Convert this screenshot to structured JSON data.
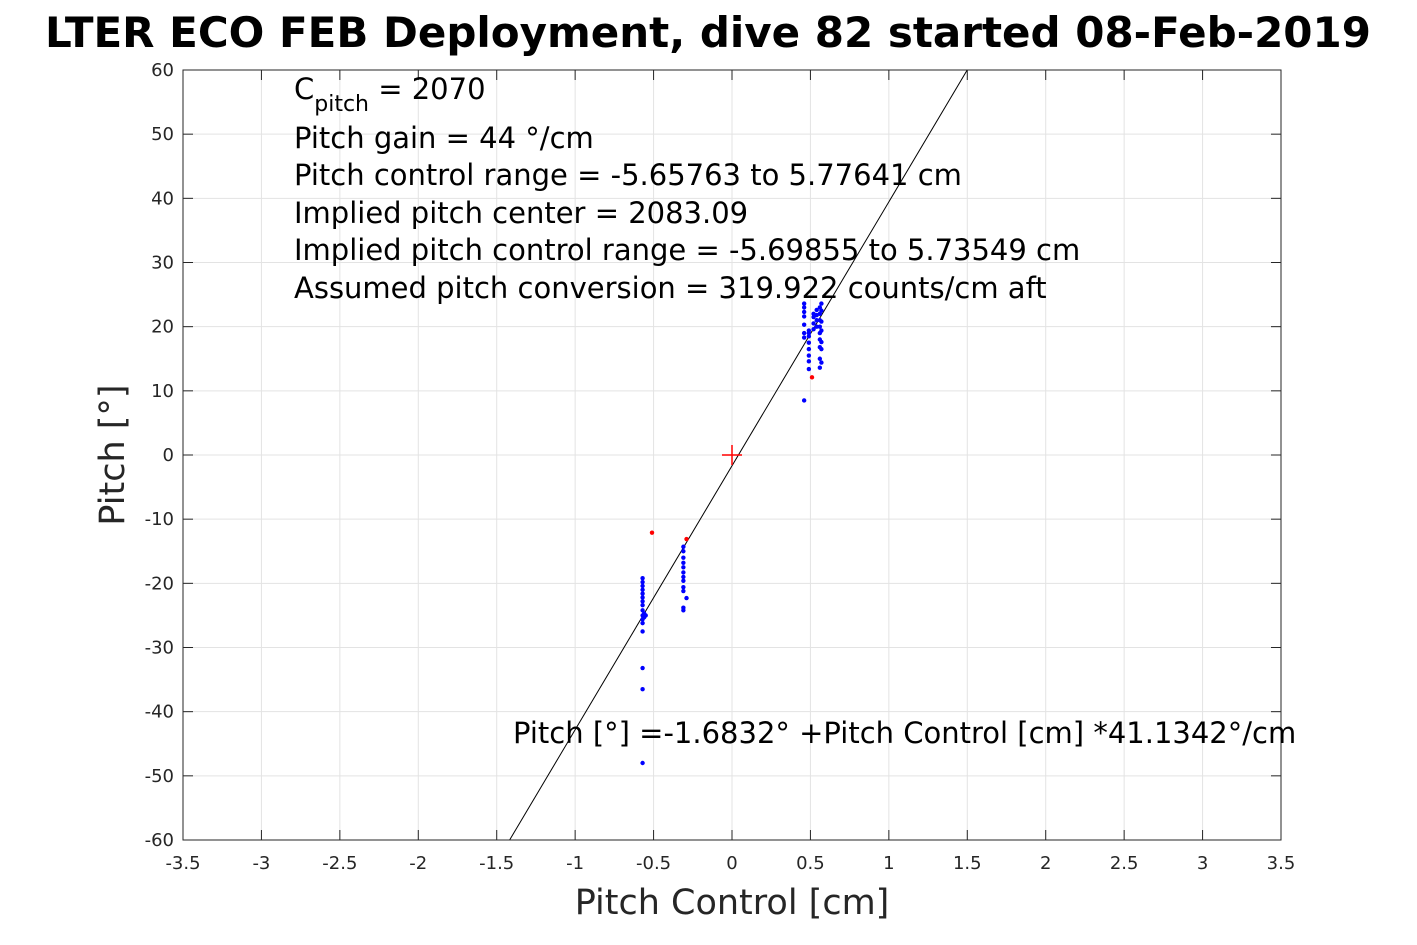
{
  "chart_data": {
    "type": "scatter",
    "title": "LTER ECO FEB Deployment, dive 82 started 08-Feb-2019",
    "xlabel": "Pitch Control [cm]",
    "ylabel": "Pitch [°]",
    "xlim": [
      -3.5,
      3.5
    ],
    "ylim": [
      -60,
      60
    ],
    "xticks": [
      -3.5,
      -3,
      -2.5,
      -2,
      -1.5,
      -1,
      -0.5,
      0,
      0.5,
      1,
      1.5,
      2,
      2.5,
      3,
      3.5
    ],
    "yticks": [
      -60,
      -50,
      -40,
      -30,
      -20,
      -10,
      0,
      10,
      20,
      30,
      40,
      50,
      60
    ],
    "xtick_labels": [
      "-3.5",
      "-3",
      "-2.5",
      "-2",
      "-1.5",
      "-1",
      "-0.5",
      "0",
      "0.5",
      "1",
      "1.5",
      "2",
      "2.5",
      "3",
      "3.5"
    ],
    "ytick_labels": [
      "-60",
      "-50",
      "-40",
      "-30",
      "-20",
      "-10",
      "0",
      "10",
      "20",
      "30",
      "40",
      "50",
      "60"
    ],
    "grid": true,
    "fit": {
      "intercept": -1.6832,
      "slope": 41.1342,
      "color": "#000000"
    },
    "center_marker": {
      "x": 0,
      "y": 0,
      "color": "#ff0000"
    },
    "series": [
      {
        "color": "#0000ff",
        "points": [
          [
            -0.57,
            -19.2
          ],
          [
            -0.57,
            -19.8
          ],
          [
            -0.57,
            -20.4
          ],
          [
            -0.57,
            -21.0
          ],
          [
            -0.57,
            -21.6
          ],
          [
            -0.57,
            -22.2
          ],
          [
            -0.57,
            -22.8
          ],
          [
            -0.57,
            -23.4
          ],
          [
            -0.57,
            -24.2
          ],
          [
            -0.57,
            -25.0
          ],
          [
            -0.57,
            -25.6
          ],
          [
            -0.57,
            -26.2
          ],
          [
            -0.57,
            -27.5
          ],
          [
            -0.56,
            -24.7
          ],
          [
            -0.56,
            -25.3
          ],
          [
            -0.55,
            -25.0
          ],
          [
            -0.57,
            -33.2
          ],
          [
            -0.57,
            -36.5
          ],
          [
            -0.57,
            -48.0
          ],
          [
            -0.31,
            -14.3
          ],
          [
            -0.31,
            -15.0
          ],
          [
            -0.31,
            -16.0
          ],
          [
            -0.31,
            -16.8
          ],
          [
            -0.31,
            -17.5
          ],
          [
            -0.31,
            -18.3
          ],
          [
            -0.31,
            -19.0
          ],
          [
            -0.31,
            -19.6
          ],
          [
            -0.31,
            -20.6
          ],
          [
            -0.31,
            -21.2
          ],
          [
            -0.31,
            -23.8
          ],
          [
            -0.31,
            -24.2
          ],
          [
            -0.29,
            -22.3
          ],
          [
            0.46,
            8.5
          ],
          [
            0.46,
            18.3
          ],
          [
            0.46,
            19.0
          ],
          [
            0.46,
            20.3
          ],
          [
            0.46,
            21.6
          ],
          [
            0.46,
            22.3
          ],
          [
            0.46,
            23.0
          ],
          [
            0.46,
            23.6
          ],
          [
            0.49,
            13.4
          ],
          [
            0.49,
            14.6
          ],
          [
            0.49,
            15.5
          ],
          [
            0.49,
            16.5
          ],
          [
            0.49,
            17.5
          ],
          [
            0.49,
            18.5
          ],
          [
            0.49,
            19.0
          ],
          [
            0.49,
            19.4
          ],
          [
            0.52,
            19.6
          ],
          [
            0.52,
            20.5
          ],
          [
            0.52,
            21.5
          ],
          [
            0.52,
            22.0
          ],
          [
            0.54,
            20.0
          ],
          [
            0.54,
            21.0
          ],
          [
            0.54,
            21.8
          ],
          [
            0.54,
            22.6
          ],
          [
            0.56,
            13.6
          ],
          [
            0.56,
            15.0
          ],
          [
            0.56,
            16.8
          ],
          [
            0.56,
            18.0
          ],
          [
            0.56,
            19.0
          ],
          [
            0.56,
            20.0
          ],
          [
            0.56,
            21.0
          ],
          [
            0.56,
            22.0
          ],
          [
            0.56,
            23.0
          ],
          [
            0.57,
            14.4
          ],
          [
            0.57,
            16.5
          ],
          [
            0.57,
            17.6
          ],
          [
            0.57,
            19.4
          ],
          [
            0.57,
            20.8
          ],
          [
            0.57,
            22.5
          ],
          [
            0.57,
            23.6
          ]
        ]
      },
      {
        "color": "#ff0000",
        "points": [
          [
            -0.51,
            -12.1
          ],
          [
            -0.29,
            -13.1
          ],
          [
            0.51,
            12.1
          ]
        ]
      }
    ],
    "annotations": [
      {
        "pre": "C",
        "sub": "pitch",
        "post": " = 2070"
      },
      {
        "text": "Pitch gain = 44 °/cm"
      },
      {
        "text": "Pitch control range = -5.65763 to 5.77641 cm"
      },
      {
        "text": "Implied pitch center = 2083.09"
      },
      {
        "text": "Implied pitch control range = -5.69855 to 5.73549 cm"
      },
      {
        "text": "Assumed pitch conversion = 319.922 counts/cm aft"
      }
    ],
    "fit_label": "Pitch [°] =-1.6832° +Pitch Control [cm] *41.1342°/cm"
  }
}
